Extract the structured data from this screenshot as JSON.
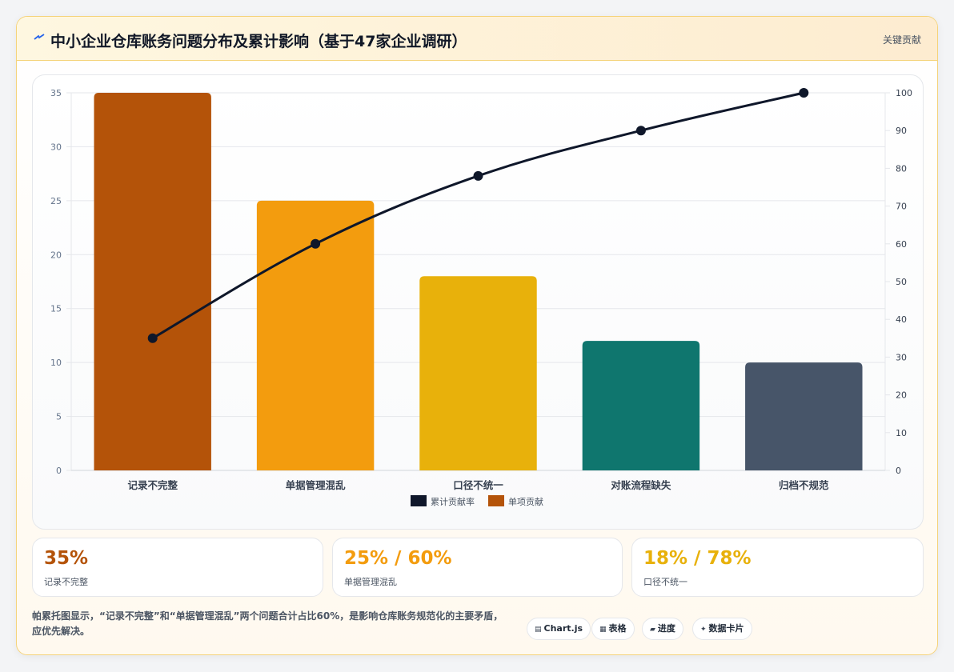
{
  "header": {
    "title": "中小企业仓库账务问题分布及累计影响（基于47家企业调研）",
    "tag": "关键贡献"
  },
  "chart_data": {
    "type": "bar",
    "categories": [
      "记录不完整",
      "单据管理混乱",
      "口径不统一",
      "对账流程缺失",
      "归档不规范"
    ],
    "series": [
      {
        "name": "单项贡献",
        "type": "bar",
        "axis": "left",
        "values": [
          35,
          25,
          18,
          12,
          10
        ],
        "colors": [
          "#b45309",
          "#f39c0e",
          "#e8b10b",
          "#0f766e",
          "#475569"
        ]
      },
      {
        "name": "累计贡献率",
        "type": "line",
        "axis": "right",
        "values": [
          35,
          60,
          78,
          90,
          100
        ],
        "color": "#0f172a"
      }
    ],
    "ylim": [
      0,
      35
    ],
    "y2lim": [
      0,
      100
    ],
    "yticks": [
      0,
      5,
      10,
      15,
      20,
      25,
      30,
      35
    ],
    "y2ticks": [
      0,
      10,
      20,
      30,
      40,
      50,
      60,
      70,
      80,
      90,
      100
    ],
    "legend": [
      {
        "name": "累计贡献率",
        "color": "#0f172a"
      },
      {
        "name": "单项贡献",
        "color": "#b45309"
      }
    ],
    "legend_position": "bottom",
    "grid": true
  },
  "stats": [
    {
      "value": "35%",
      "label": "记录不完整",
      "color": "#b45309"
    },
    {
      "value": "25% / 60%",
      "label": "单据管理混乱",
      "color": "#f39c0e"
    },
    {
      "value": "18% / 78%",
      "label": "口径不统一",
      "color": "#e8b10b"
    }
  ],
  "footer": {
    "note": "帕累托图显示，“记录不完整”和“单据管理混乱”两个问题合计占比60%，是影响仓库账务规范化的主要矛盾，应优先解决。"
  },
  "chips": [
    {
      "label": "Chart.js",
      "icon": "chart-icon"
    },
    {
      "label": "表格",
      "icon": "table-icon"
    },
    {
      "label": "进度",
      "icon": "progress-icon"
    },
    {
      "label": "数据卡片",
      "icon": "sparkle-icon"
    }
  ]
}
